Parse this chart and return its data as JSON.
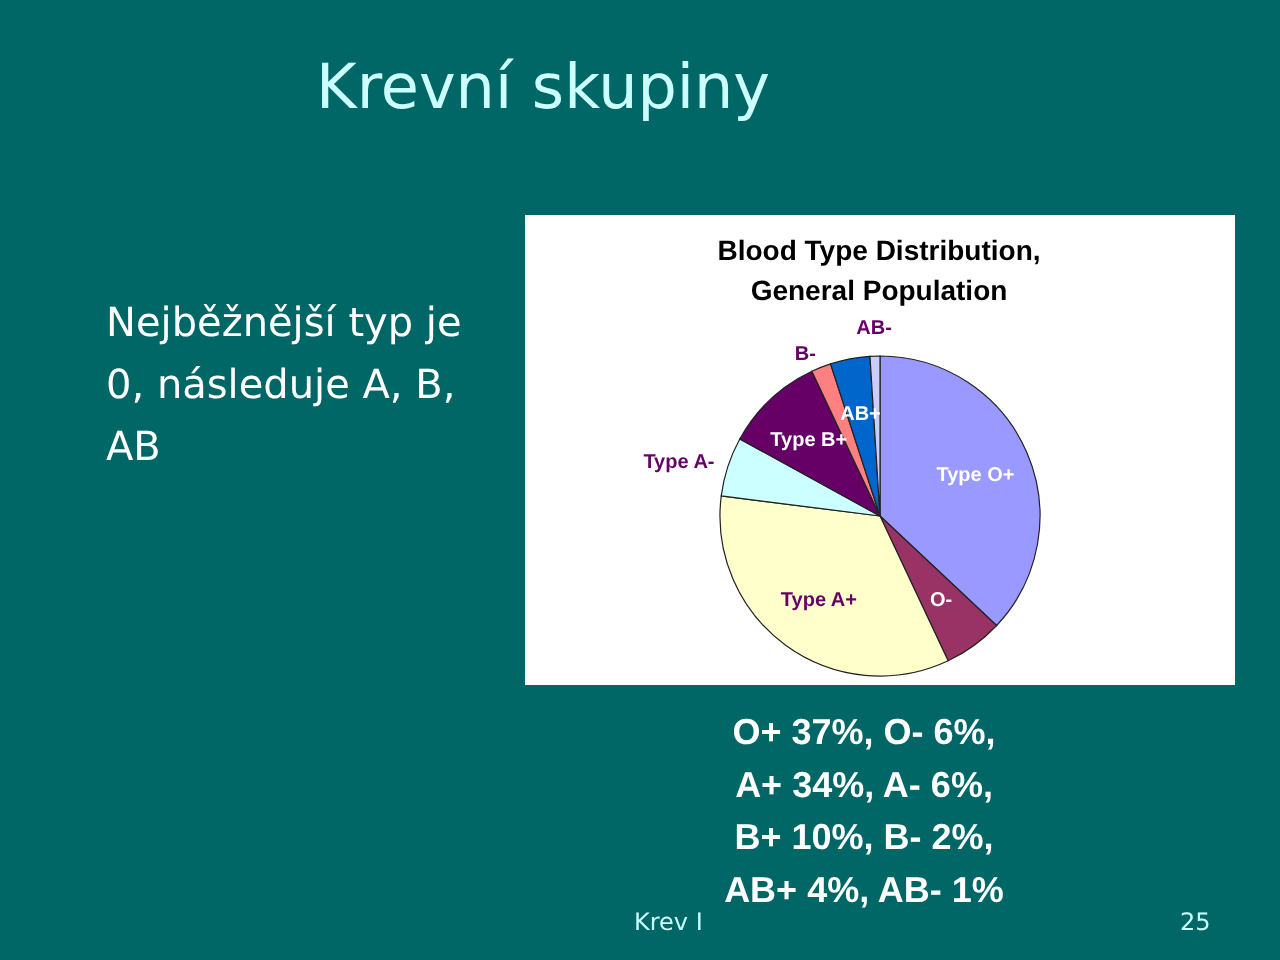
{
  "chart_data": {
    "type": "pie",
    "title": "Krevní skupiny",
    "subtitle": "Blood Type Distribution,\nGeneral Population",
    "categories": [
      "Type O+",
      "O-",
      "Type A+",
      "Type A-",
      "Type B+",
      "B-",
      "AB+",
      "AB-"
    ],
    "values": [
      37,
      6,
      34,
      6,
      10,
      2,
      4,
      1
    ],
    "colors": [
      "#9999ff",
      "#993366",
      "#ffffcc",
      "#ccffff",
      "#660066",
      "#ff8080",
      "#0066cc",
      "#ccccff"
    ],
    "annotations": [
      "Nejběžnější typ je\n0, následuje A, B,\nAB",
      "O+ 37%,  O- 6%,\nA+ 34%,  A- 6%,\nB+ 10%,  B- 2%,\nAB+ 4%,  AB- 1%",
      "Krev I",
      "25"
    ]
  }
}
